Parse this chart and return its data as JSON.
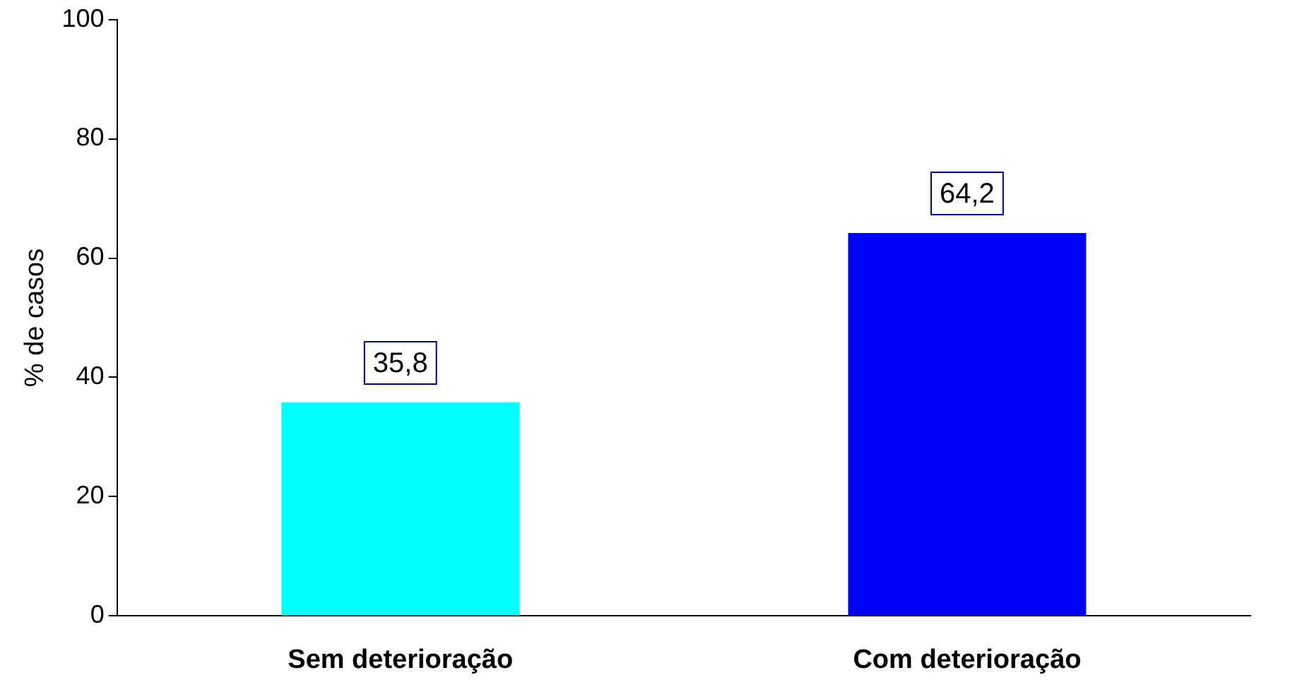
{
  "chart_data": {
    "type": "bar",
    "ylabel": "% de casos",
    "categories": [
      "Sem deterioração",
      "Com deterioração"
    ],
    "values": [
      35.8,
      64.2
    ],
    "colors": [
      "#00ffff",
      "#0000ff"
    ],
    "value_labels": [
      "35,8",
      "64,2"
    ],
    "ylim": [
      0,
      100
    ],
    "yticks": [
      0,
      20,
      40,
      60,
      80,
      100
    ],
    "grid": false,
    "legend": false
  }
}
